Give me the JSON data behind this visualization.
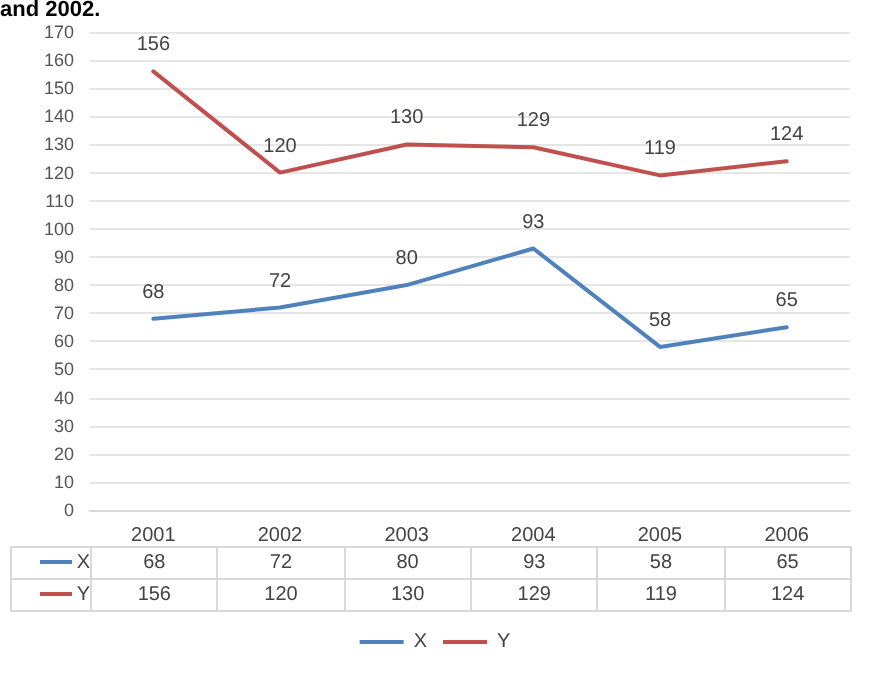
{
  "chart_data": {
    "type": "line",
    "title": "and 2002.",
    "categories": [
      "2001",
      "2002",
      "2003",
      "2004",
      "2005",
      "2006"
    ],
    "series": [
      {
        "name": "X",
        "color": "#4f81bd",
        "values": [
          68,
          72,
          80,
          93,
          58,
          65
        ],
        "value_labels": [
          "68",
          "72",
          "80",
          "93",
          "58",
          "65"
        ]
      },
      {
        "name": "Y",
        "color": "#c0504d",
        "values": [
          156,
          120,
          130,
          129,
          119,
          124
        ],
        "value_labels": [
          "156",
          "120",
          "130",
          "129",
          "119",
          "124"
        ]
      }
    ],
    "ylim": [
      0,
      170
    ],
    "yticks": [
      0,
      10,
      20,
      30,
      40,
      50,
      60,
      70,
      80,
      90,
      100,
      110,
      120,
      130,
      140,
      150,
      160,
      170
    ],
    "annotations": [
      "68",
      "72",
      "80",
      "93",
      "58",
      "65",
      "156",
      "120",
      "130",
      "129",
      "119",
      "124"
    ],
    "grid": "y",
    "legend": "bottom",
    "marker": "none",
    "line_style": "solid",
    "data_labels": true
  }
}
